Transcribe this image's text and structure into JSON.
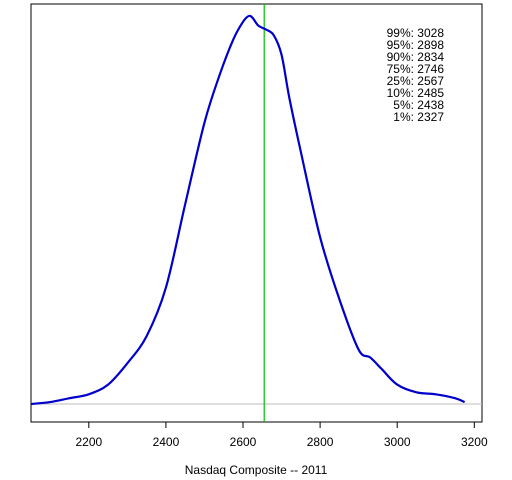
{
  "chart_data": {
    "type": "line",
    "title": "",
    "xlabel": "Nasdaq Composite -- 2011",
    "ylabel": "",
    "xlim": [
      2050,
      3220
    ],
    "ylim": [
      0,
      1
    ],
    "x_ticks": [
      2200,
      2400,
      2600,
      2800,
      3000,
      3200
    ],
    "x_tick_labels": [
      "2200",
      "2400",
      "2600",
      "2800",
      "3000",
      "3200"
    ],
    "reference_line": {
      "x": 2655,
      "color": "#00c000"
    },
    "baseline_color": "#bebebe",
    "series": [
      {
        "color": "#0000cc",
        "x": [
          2050,
          2100,
          2150,
          2200,
          2250,
          2300,
          2350,
          2400,
          2450,
          2500,
          2540,
          2575,
          2600,
          2615,
          2625,
          2640,
          2660,
          2680,
          2700,
          2720,
          2750,
          2800,
          2850,
          2900,
          2930,
          2960,
          3000,
          3050,
          3100,
          3150,
          3175
        ],
        "y": [
          0.0,
          0.005,
          0.015,
          0.025,
          0.05,
          0.105,
          0.175,
          0.3,
          0.515,
          0.725,
          0.85,
          0.94,
          0.985,
          1.0,
          0.995,
          0.975,
          0.965,
          0.95,
          0.9,
          0.79,
          0.65,
          0.43,
          0.27,
          0.14,
          0.12,
          0.09,
          0.05,
          0.03,
          0.025,
          0.015,
          0.005
        ]
      }
    ],
    "percentiles": [
      {
        "label": "99%: 3028"
      },
      {
        "label": "95%: 2898"
      },
      {
        "label": "90%: 2834"
      },
      {
        "label": "75%: 2746"
      },
      {
        "label": "25%: 2567"
      },
      {
        "label": "10%: 2485"
      },
      {
        "label": "5%: 2438"
      },
      {
        "label": "1%: 2327"
      }
    ]
  }
}
